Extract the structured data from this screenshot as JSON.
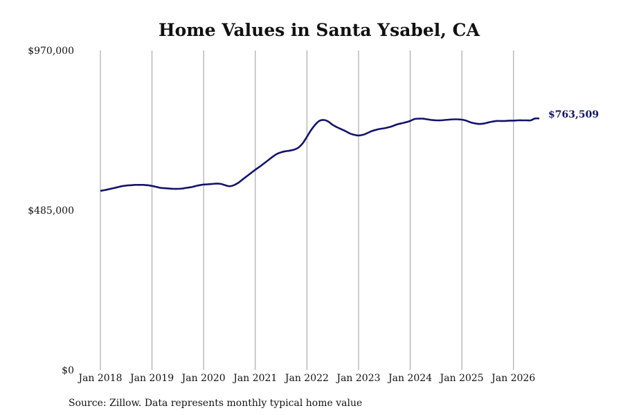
{
  "source_note": "Source: Zillow. Data represents monthly typical home value",
  "colors": {
    "line": "#12126b",
    "grid": "#9a9a9a",
    "text": "#111111"
  },
  "chart_data": {
    "type": "line",
    "title": "Home Values in Santa Ysabel, CA",
    "xlabel": "",
    "ylabel": "",
    "x_tick_labels": [
      "Jan 2018",
      "Jan 2019",
      "Jan 2020",
      "Jan 2021",
      "Jan 2022",
      "Jan 2023",
      "Jan 2024",
      "Jan 2025",
      "Jan 2026"
    ],
    "y_tick_labels": [
      "$970,000",
      "$485,000",
      "$0"
    ],
    "ylim": [
      0,
      970000
    ],
    "xlim": [
      "2018-01",
      "2026-07"
    ],
    "grid": "vertical lines at each January",
    "end_label": "$763,509",
    "series": [
      {
        "x": [
          "2018-01",
          "2018-02",
          "2018-03",
          "2018-04",
          "2018-05",
          "2018-06",
          "2018-07",
          "2018-08",
          "2018-09",
          "2018-10",
          "2018-11",
          "2018-12",
          "2019-01",
          "2019-02",
          "2019-03",
          "2019-04",
          "2019-05",
          "2019-06",
          "2019-07",
          "2019-08",
          "2019-09",
          "2019-10",
          "2019-11",
          "2019-12",
          "2020-01",
          "2020-02",
          "2020-03",
          "2020-04",
          "2020-05",
          "2020-06",
          "2020-07",
          "2020-08",
          "2020-09",
          "2020-10",
          "2020-11",
          "2020-12",
          "2021-01",
          "2021-02",
          "2021-03",
          "2021-04",
          "2021-05",
          "2021-06",
          "2021-07",
          "2021-08",
          "2021-09",
          "2021-10",
          "2021-11",
          "2021-12",
          "2022-01",
          "2022-02",
          "2022-03",
          "2022-04",
          "2022-05",
          "2022-06",
          "2022-07",
          "2022-08",
          "2022-09",
          "2022-10",
          "2022-11",
          "2022-12",
          "2023-01",
          "2023-02",
          "2023-03",
          "2023-04",
          "2023-05",
          "2023-06",
          "2023-07",
          "2023-08",
          "2023-09",
          "2023-10",
          "2023-11",
          "2023-12",
          "2024-01",
          "2024-02",
          "2024-03",
          "2024-04",
          "2024-05",
          "2024-06",
          "2024-07",
          "2024-08",
          "2024-09",
          "2024-10",
          "2024-11",
          "2024-12",
          "2025-01",
          "2025-02",
          "2025-03",
          "2025-04",
          "2025-05",
          "2025-06",
          "2025-07",
          "2025-08",
          "2025-09",
          "2025-10",
          "2025-11",
          "2025-12",
          "2026-01",
          "2026-02",
          "2026-03",
          "2026-04",
          "2026-05",
          "2026-06",
          "2026-07"
        ],
        "values": [
          544000,
          546000,
          549000,
          552000,
          555000,
          558000,
          560000,
          561000,
          562000,
          562000,
          562000,
          561000,
          559000,
          556000,
          553000,
          552000,
          551000,
          550000,
          550000,
          551000,
          553000,
          555000,
          558000,
          561000,
          563000,
          564000,
          565000,
          566000,
          565000,
          561000,
          558000,
          561000,
          568000,
          578000,
          588000,
          598000,
          608000,
          617000,
          627000,
          637000,
          647000,
          656000,
          661000,
          664000,
          666000,
          669000,
          675000,
          688000,
          708000,
          729000,
          746000,
          757000,
          759000,
          754000,
          744000,
          737000,
          731000,
          725000,
          718000,
          714000,
          712000,
          714000,
          719000,
          725000,
          729000,
          732000,
          734000,
          737000,
          741000,
          746000,
          749000,
          752000,
          756000,
          762000,
          763000,
          763000,
          761000,
          759000,
          758000,
          758000,
          759000,
          760000,
          761000,
          761000,
          760000,
          757000,
          752000,
          749000,
          747000,
          748000,
          751000,
          754000,
          756000,
          756000,
          756000,
          757000,
          757000,
          758000,
          758000,
          758000,
          758000,
          763509,
          763509
        ]
      }
    ]
  }
}
